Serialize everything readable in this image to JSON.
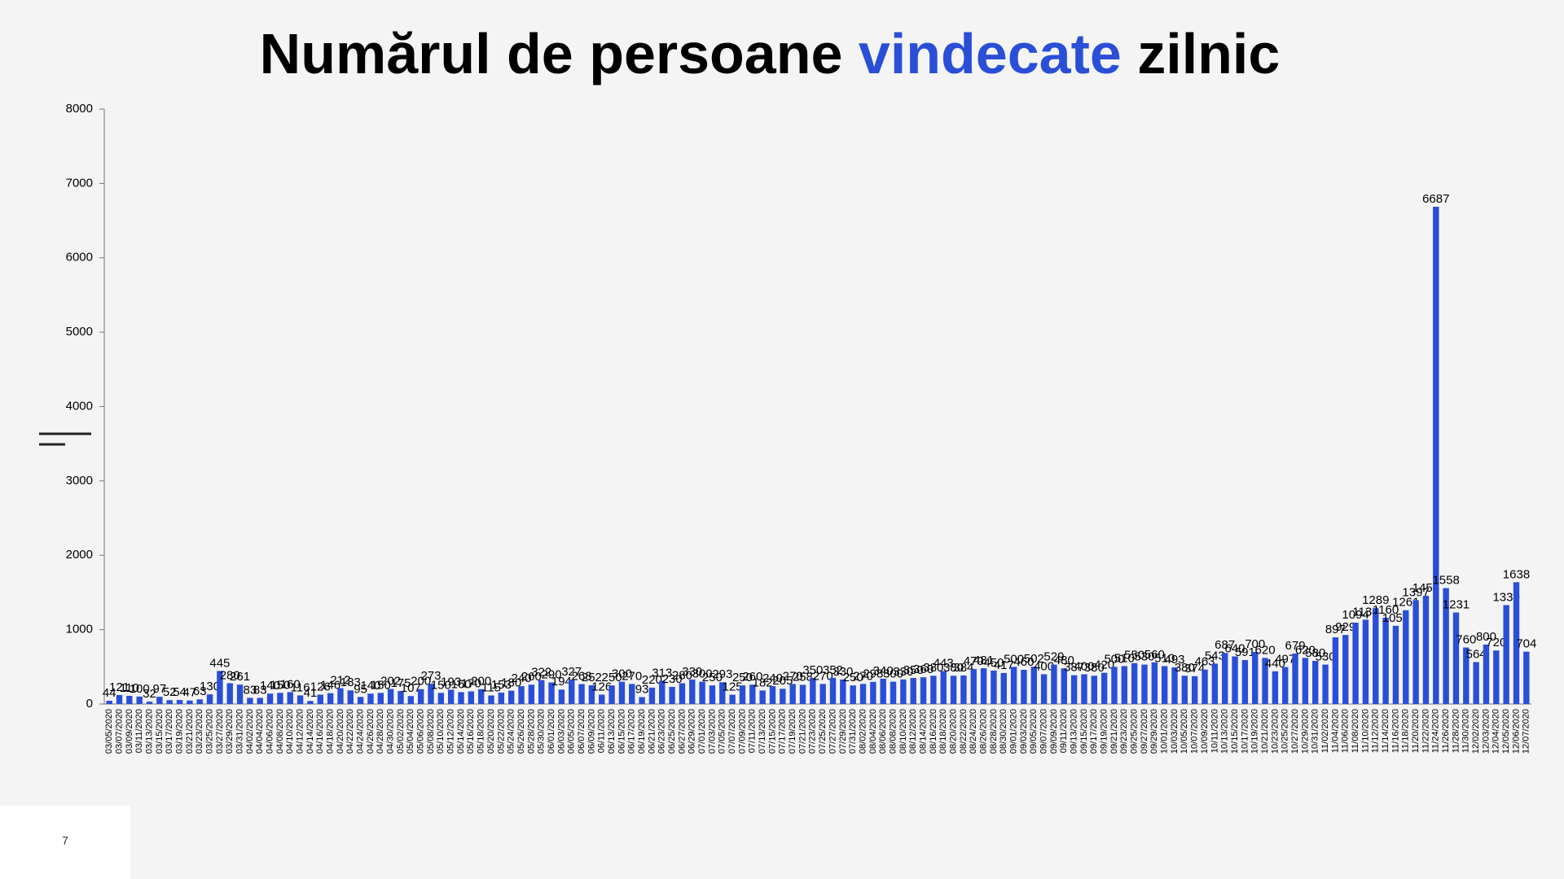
{
  "chart_data": {
    "type": "bar",
    "title_parts": [
      "Numărul de persoane ",
      "vindecate",
      " zilnic"
    ],
    "title_colors": [
      "#000000",
      "#2a4fd6",
      "#000000"
    ],
    "page_number": "7",
    "color": "#2a4fd6",
    "ylim": [
      0,
      8000
    ],
    "yticks": [
      0,
      1000,
      2000,
      3000,
      4000,
      5000,
      6000,
      7000,
      8000
    ],
    "categories": [
      "03/05/2020",
      "03/07/2020",
      "03/09/2020",
      "03/11/2020",
      "03/13/2020",
      "03/15/2020",
      "03/17/2020",
      "03/19/2020",
      "03/21/2020",
      "03/23/2020",
      "03/25/2020",
      "03/27/2020",
      "03/29/2020",
      "03/31/2020",
      "04/02/2020",
      "04/04/2020",
      "04/06/2020",
      "04/08/2020",
      "04/10/2020",
      "04/12/2020",
      "04/14/2020",
      "04/16/2020",
      "04/18/2020",
      "04/20/2020",
      "04/22/2020",
      "04/24/2020",
      "04/26/2020",
      "04/28/2020",
      "04/30/2020",
      "05/02/2020",
      "05/04/2020",
      "05/06/2020",
      "05/08/2020",
      "05/10/2020",
      "05/12/2020",
      "05/14/2020",
      "05/16/2020",
      "05/18/2020",
      "05/20/2020",
      "05/22/2020",
      "05/24/2020",
      "05/26/2020",
      "05/28/2020",
      "05/30/2020",
      "06/01/2020",
      "06/03/2020",
      "06/05/2020",
      "06/07/2020",
      "06/09/2020",
      "06/11/2020",
      "06/13/2020",
      "06/15/2020",
      "06/17/2020",
      "06/19/2020",
      "06/21/2020",
      "06/23/2020",
      "06/25/2020",
      "06/27/2020",
      "06/29/2020",
      "07/01/2020",
      "07/03/2020",
      "07/05/2020",
      "07/07/2020",
      "07/09/2020",
      "07/11/2020",
      "07/13/2020",
      "07/15/2020",
      "07/17/2020",
      "07/19/2020",
      "07/21/2020",
      "07/23/2020",
      "07/25/2020",
      "07/27/2020",
      "07/29/2020",
      "07/31/2020",
      "08/02/2020",
      "08/04/2020",
      "08/06/2020",
      "08/08/2020",
      "08/10/2020",
      "08/12/2020",
      "08/14/2020",
      "08/16/2020",
      "08/18/2020",
      "08/20/2020",
      "08/22/2020",
      "08/24/2020",
      "08/26/2020",
      "08/28/2020",
      "08/30/2020",
      "09/01/2020",
      "09/03/2020",
      "09/05/2020",
      "09/07/2020",
      "09/09/2020",
      "09/11/2020",
      "09/13/2020",
      "09/15/2020",
      "09/17/2020",
      "09/19/2020",
      "09/21/2020",
      "09/23/2020",
      "09/25/2020",
      "09/27/2020",
      "09/29/2020",
      "10/01/2020",
      "10/03/2020",
      "10/05/2020",
      "10/07/2020",
      "10/09/2020",
      "10/11/2020",
      "10/13/2020",
      "10/15/2020",
      "10/17/2020",
      "10/19/2020",
      "10/21/2020",
      "10/23/2020",
      "10/25/2020",
      "10/27/2020",
      "10/29/2020",
      "10/31/2020",
      "11/02/2020",
      "11/04/2020",
      "11/06/2020",
      "11/08/2020",
      "11/10/2020",
      "11/12/2020",
      "11/14/2020",
      "11/16/2020",
      "11/18/2020",
      "11/20/2020",
      "11/22/2020",
      "11/24/2020",
      "11/26/2020",
      "11/28/2020",
      "11/30/2020",
      "12/02/2020",
      "12/03/2020",
      "12/04/2020",
      "12/05/2020",
      "12/06/2020",
      "12/07/2020"
    ],
    "values": [
      44,
      121,
      110,
      100,
      32,
      97,
      52,
      54,
      47,
      63,
      130,
      445,
      280,
      261,
      83,
      83,
      140,
      150,
      160,
      116,
      41,
      126,
      146,
      212,
      183,
      95,
      140,
      150,
      202,
      175,
      107,
      200,
      273,
      150,
      193,
      160,
      170,
      200,
      115,
      153,
      180,
      240,
      260,
      322,
      290,
      194,
      327,
      268,
      252,
      126,
      250,
      300,
      270,
      93,
      220,
      313,
      230,
      280,
      330,
      300,
      250,
      293,
      125,
      250,
      260,
      182,
      240,
      205,
      270,
      258,
      350,
      270,
      352,
      330,
      250,
      270,
      298,
      340,
      300,
      330,
      350,
      360,
      380,
      443,
      380,
      384,
      470,
      481,
      450,
      417,
      500,
      460,
      502,
      400,
      529,
      480,
      387,
      400,
      380,
      420,
      500,
      510,
      550,
      530,
      560,
      510,
      493,
      380,
      374,
      463,
      543,
      687,
      640,
      591,
      700,
      620,
      440,
      497,
      679,
      620,
      580,
      530,
      897,
      929,
      1094,
      1134,
      1289,
      1160,
      1052,
      1261,
      1397,
      1454,
      6687,
      1558,
      1231,
      760,
      564,
      800,
      720,
      1330,
      1638,
      704
    ]
  }
}
